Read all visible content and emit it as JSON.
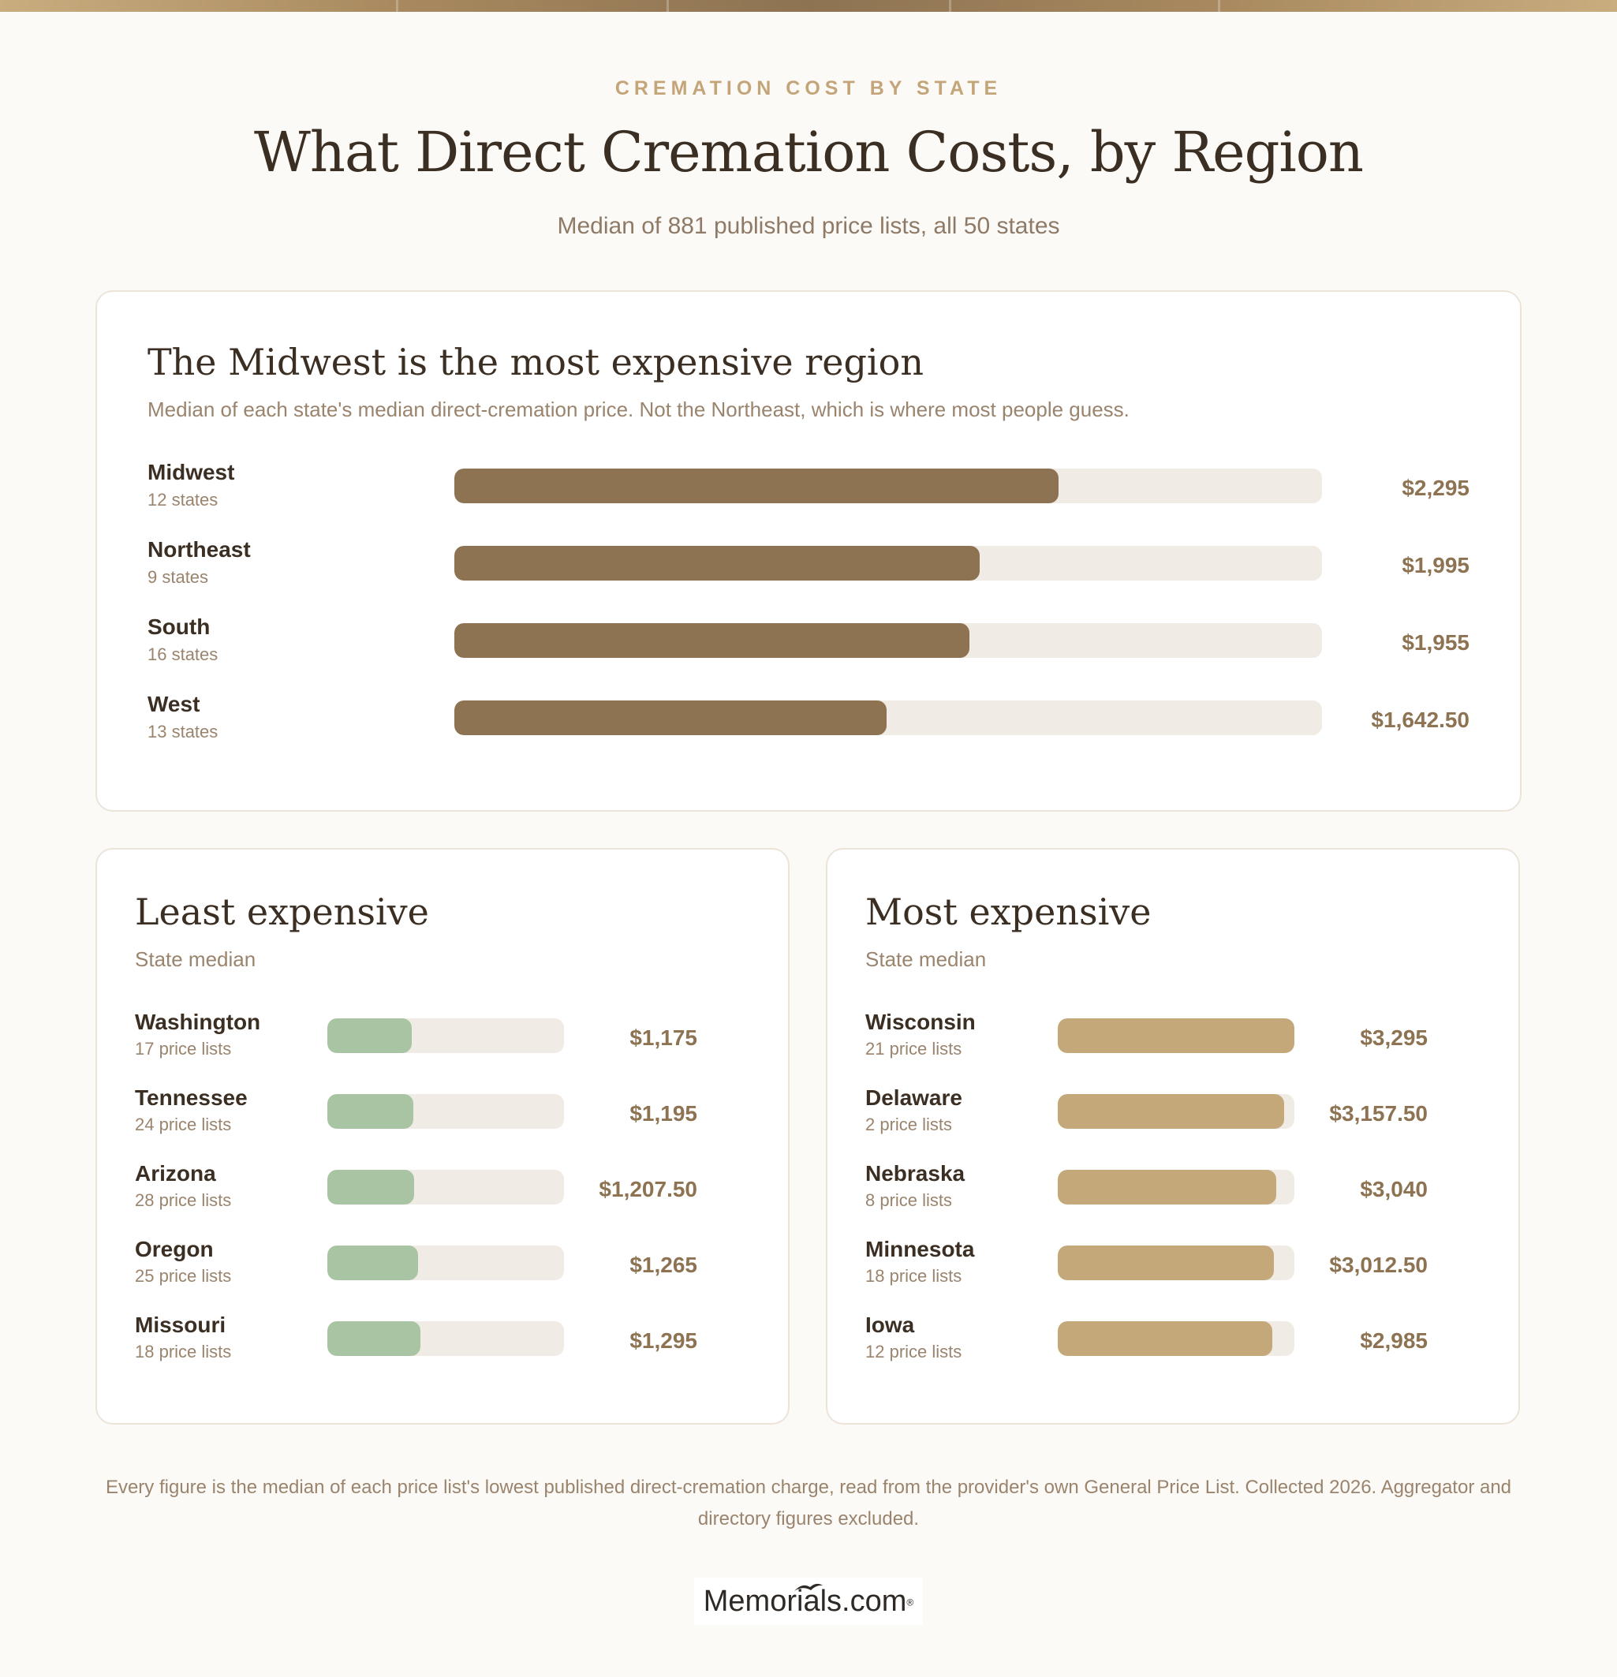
{
  "header": {
    "eyebrow": "CREMATION COST BY STATE",
    "title": "What Direct Cremation Costs, by Region",
    "subtitle": "Median of 881 published price lists, all 50 states"
  },
  "chart_data": [
    {
      "type": "bar",
      "orientation": "horizontal",
      "title": "The Midwest is the most expensive region",
      "subtitle": "Median of each state's median direct-cremation price. Not the Northeast, which is where most people guess.",
      "categories": [
        "Midwest",
        "Northeast",
        "South",
        "West"
      ],
      "sublabels": [
        "12 states",
        "9 states",
        "16 states",
        "13 states"
      ],
      "values": [
        2295,
        1995,
        1955,
        1642.5
      ],
      "value_labels": [
        "$2,295",
        "$1,995",
        "$1,955",
        "$1,642.50"
      ],
      "xlim": [
        0,
        3295
      ],
      "color": "#8d7352"
    },
    {
      "type": "bar",
      "orientation": "horizontal",
      "title": "Least expensive",
      "subtitle": "State median",
      "categories": [
        "Washington",
        "Tennessee",
        "Arizona",
        "Oregon",
        "Missouri"
      ],
      "sublabels": [
        "17 price lists",
        "24 price lists",
        "28 price lists",
        "25 price lists",
        "18 price lists"
      ],
      "values": [
        1175,
        1195,
        1207.5,
        1265,
        1295
      ],
      "value_labels": [
        "$1,175",
        "$1,195",
        "$1,207.50",
        "$1,265",
        "$1,295"
      ],
      "xlim": [
        0,
        3295
      ],
      "color": "#a8c4a2"
    },
    {
      "type": "bar",
      "orientation": "horizontal",
      "title": "Most expensive",
      "subtitle": "State median",
      "categories": [
        "Wisconsin",
        "Delaware",
        "Nebraska",
        "Minnesota",
        "Iowa"
      ],
      "sublabels": [
        "21 price lists",
        "2 price lists",
        "8 price lists",
        "18 price lists",
        "12 price lists"
      ],
      "values": [
        3295,
        3157.5,
        3040,
        3012.5,
        2985
      ],
      "value_labels": [
        "$3,295",
        "$3,157.50",
        "$3,040",
        "$3,012.50",
        "$2,985"
      ],
      "xlim": [
        0,
        3295
      ],
      "color": "#c4a87a"
    }
  ],
  "footnote": "Every figure is the median of each price list's lowest published direct-cremation charge, read from the provider's own General Price List. Collected 2026. Aggregator and directory figures excluded.",
  "logo": {
    "text": "Memorials.com",
    "mark": "®"
  }
}
